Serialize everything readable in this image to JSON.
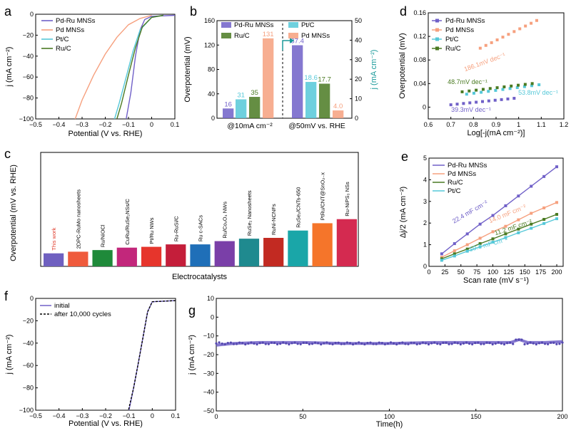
{
  "colors": {
    "pdru": "#7060c8",
    "pd": "#f6a07e",
    "pt": "#55c8d8",
    "ru": "#4a7a22",
    "black": "#000000"
  },
  "chart_data": [
    {
      "panel": "a",
      "type": "line",
      "xlabel": "Potential (V vs. RHE)",
      "ylabel": "j (mA cm⁻²)",
      "xlim": [
        -0.5,
        0.1
      ],
      "ylim": [
        -100,
        0
      ],
      "xticks": [
        -0.5,
        -0.4,
        -0.3,
        -0.2,
        -0.1,
        0.0,
        0.1
      ],
      "yticks": [
        0,
        -20,
        -40,
        -60,
        -80,
        -100
      ],
      "legend": [
        "Pd-Ru MNSs",
        "Pd MNSs",
        "Pt/C",
        "Ru/C"
      ],
      "series": [
        {
          "name": "Pd-Ru MNSs",
          "x": [
            0.1,
            0.0,
            -0.03,
            -0.05,
            -0.07,
            -0.09,
            -0.11
          ],
          "y": [
            -1,
            -2,
            -5,
            -15,
            -40,
            -75,
            -100
          ]
        },
        {
          "name": "Pd MNSs",
          "x": [
            0.0,
            -0.05,
            -0.1,
            -0.15,
            -0.2,
            -0.25,
            -0.3,
            -0.33
          ],
          "y": [
            -1,
            -4,
            -10,
            -22,
            -38,
            -58,
            -82,
            -100
          ]
        },
        {
          "name": "Pt/C",
          "x": [
            0.05,
            0.0,
            -0.05,
            -0.08,
            -0.11,
            -0.14,
            -0.16
          ],
          "y": [
            -1,
            -3,
            -15,
            -35,
            -60,
            -85,
            -100
          ]
        },
        {
          "name": "Ru/C",
          "x": [
            0.05,
            0.0,
            -0.04,
            -0.07,
            -0.1,
            -0.13,
            -0.15
          ],
          "y": [
            -1,
            -3,
            -12,
            -32,
            -58,
            -85,
            -100
          ]
        }
      ]
    },
    {
      "panel": "b",
      "type": "bar",
      "ylabel_left": "Overpotential (mV)",
      "ylabel_right": "j (mA cm⁻²)",
      "ylim_left": [
        0,
        160
      ],
      "ylim_right": [
        0,
        50
      ],
      "yticks_left": [
        0,
        40,
        80,
        120,
        160
      ],
      "yticks_right": [
        0,
        10,
        20,
        30,
        40,
        50
      ],
      "categories": [
        "@10mA cm⁻²",
        "@50mV vs. RHE"
      ],
      "legend": [
        "Pd-Ru MNSs",
        "Pt/C",
        "Ru/C",
        "Pd MNSs"
      ],
      "series": [
        {
          "name": "Pd-Ru MNSs",
          "values": [
            16,
            37.4
          ]
        },
        {
          "name": "Pt/C",
          "values": [
            31,
            18.6
          ]
        },
        {
          "name": "Ru/C",
          "values": [
            35,
            17.7
          ]
        },
        {
          "name": "Pd MNSs",
          "values": [
            131,
            4.0
          ]
        }
      ],
      "labels_group1": [
        "16",
        "31",
        "35",
        "131"
      ],
      "labels_group2": [
        "37.4",
        "18.6",
        "17.7",
        "4.0"
      ]
    },
    {
      "panel": "d",
      "type": "scatter",
      "xlabel": "Log[-j(mA cm⁻²)]",
      "ylabel": "Overpotential (mV)",
      "xlim": [
        0.6,
        1.2
      ],
      "ylim": [
        -0.02,
        0.16
      ],
      "xticks": [
        0.6,
        0.7,
        0.8,
        0.9,
        1.0,
        1.1,
        1.2
      ],
      "yticks": [
        0.0,
        0.04,
        0.08,
        0.12,
        0.16
      ],
      "legend": [
        "Pd-Ru MNSs",
        "Pd MNSs",
        "Pt/C",
        "Ru/C"
      ],
      "series": [
        {
          "name": "Pd-Ru MNSs",
          "x0": 0.7,
          "x1": 0.98,
          "y0": 0.004,
          "y1": 0.015,
          "label": "39.3mV dec⁻¹"
        },
        {
          "name": "Pd MNSs",
          "x0": 0.83,
          "x1": 1.08,
          "y0": 0.1,
          "y1": 0.147,
          "label": "186.1mV dec⁻¹"
        },
        {
          "name": "Pt/C",
          "x0": 0.77,
          "x1": 1.09,
          "y0": 0.022,
          "y1": 0.038,
          "label": "53.8mV dec⁻¹"
        },
        {
          "name": "Ru/C",
          "x0": 0.75,
          "x1": 1.06,
          "y0": 0.026,
          "y1": 0.04,
          "label": "48.7mV dec⁻¹"
        }
      ]
    },
    {
      "panel": "c",
      "type": "bar",
      "xlabel": "Electrocatalysts",
      "ylabel": "Overpotential (mV vs. RHE)",
      "categories": [
        "This work",
        "2DPC-RuMo nanosheets",
        "Ru/NiOCl",
        "CuRu/RuSe₂NSs/C",
        "Pt/Ru NWs",
        "Ru-RuSi/C",
        "Ru c-SACs",
        "Ru/Co₃O₄ NWs",
        "RuSe₂ Nanosheets",
        "RuNi-NCNFs",
        "RuSe₂/CNTs-650",
        "PtRu/CNT@SnO₂₋x",
        "Ru-NiPS₃ NSs"
      ],
      "values": [
        16,
        18,
        20,
        23,
        24,
        27,
        27,
        31,
        34,
        35,
        44,
        53,
        58
      ],
      "ylim": [
        0,
        140
      ],
      "bar_colors": [
        "#6f60c0",
        "#ef5a3c",
        "#1f8a3a",
        "#c2277b",
        "#e6352c",
        "#c41e3a",
        "#1f6fb8",
        "#7a3fa8",
        "#1f8a8f",
        "#c22a22",
        "#1aa6a8",
        "#f5752a",
        "#d42a50"
      ]
    },
    {
      "panel": "e",
      "type": "line",
      "xlabel": "Scan rate (mV s⁻¹)",
      "ylabel": "Δj/2 (mA cm⁻²)",
      "xlim": [
        0,
        210
      ],
      "ylim": [
        0,
        5
      ],
      "xticks": [
        0,
        25,
        50,
        75,
        100,
        125,
        150,
        175,
        200
      ],
      "yticks": [
        0,
        1,
        2,
        3,
        4,
        5
      ],
      "legend": [
        "Pd-Ru MNSs",
        "Pd MNSs",
        "Ru/C",
        "Pt/C"
      ],
      "series": [
        {
          "name": "Pd-Ru MNSs",
          "x": [
            20,
            40,
            60,
            80,
            100,
            120,
            140,
            160,
            180,
            200
          ],
          "y": [
            0.58,
            1.05,
            1.5,
            1.95,
            2.35,
            2.8,
            3.25,
            3.7,
            4.15,
            4.6
          ],
          "label": "22.4 mF cm⁻²"
        },
        {
          "name": "Pd MNSs",
          "x": [
            20,
            40,
            60,
            80,
            100,
            120,
            140,
            160,
            180,
            200
          ],
          "y": [
            0.42,
            0.72,
            1.0,
            1.3,
            1.6,
            1.85,
            2.15,
            2.45,
            2.7,
            2.95
          ],
          "label": "14.0 mF cm⁻²"
        },
        {
          "name": "Ru/C",
          "x": [
            20,
            40,
            60,
            80,
            100,
            120,
            140,
            160,
            180,
            200
          ],
          "y": [
            0.35,
            0.58,
            0.8,
            1.05,
            1.27,
            1.5,
            1.72,
            1.95,
            2.17,
            2.4
          ],
          "label": "11.2 mF cm⁻²"
        },
        {
          "name": "Pt/C",
          "x": [
            20,
            40,
            60,
            80,
            100,
            120,
            140,
            160,
            180,
            200
          ],
          "y": [
            0.28,
            0.48,
            0.7,
            0.9,
            1.12,
            1.33,
            1.55,
            1.76,
            1.98,
            2.2
          ],
          "label": "10.7 mF cm⁻²"
        }
      ]
    },
    {
      "panel": "f",
      "type": "line",
      "xlabel": "Potential (V vs. RHE)",
      "ylabel": "j (mA cm⁻²)",
      "xlim": [
        -0.5,
        0.1
      ],
      "ylim": [
        -100,
        0
      ],
      "xticks": [
        -0.5,
        -0.4,
        -0.3,
        -0.2,
        -0.1,
        0.0,
        0.1
      ],
      "yticks": [
        0,
        -20,
        -40,
        -60,
        -80,
        -100
      ],
      "legend": [
        "initial",
        "after 10,000 cycles"
      ],
      "series": [
        {
          "name": "initial",
          "x": [
            0.1,
            0.0,
            -0.02,
            -0.04,
            -0.06,
            -0.08,
            -0.1
          ],
          "y": [
            -2,
            -3,
            -12,
            -35,
            -58,
            -80,
            -100
          ]
        },
        {
          "name": "after 10,000 cycles",
          "x": [
            0.1,
            0.0,
            -0.02,
            -0.04,
            -0.06,
            -0.08,
            -0.102
          ],
          "y": [
            -2,
            -3,
            -12,
            -35,
            -58,
            -80,
            -100
          ]
        }
      ]
    },
    {
      "panel": "g",
      "type": "line",
      "xlabel": "Time(h)",
      "ylabel": "j (mA cm⁻²)",
      "xlim": [
        0,
        200
      ],
      "ylim": [
        -50,
        10
      ],
      "xticks": [
        0,
        50,
        100,
        150,
        200
      ],
      "yticks": [
        10,
        0,
        -10,
        -20,
        -30,
        -40,
        -50
      ],
      "series": [
        {
          "name": "stability",
          "x": [
            0,
            10,
            25,
            50,
            75,
            100,
            125,
            150,
            160,
            170,
            175,
            180,
            190,
            200
          ],
          "y": [
            -15,
            -14,
            -13.5,
            -13.5,
            -14,
            -14,
            -13.5,
            -13.5,
            -13.5,
            -13.5,
            -12,
            -13.5,
            -13.5,
            -13
          ]
        }
      ]
    }
  ]
}
